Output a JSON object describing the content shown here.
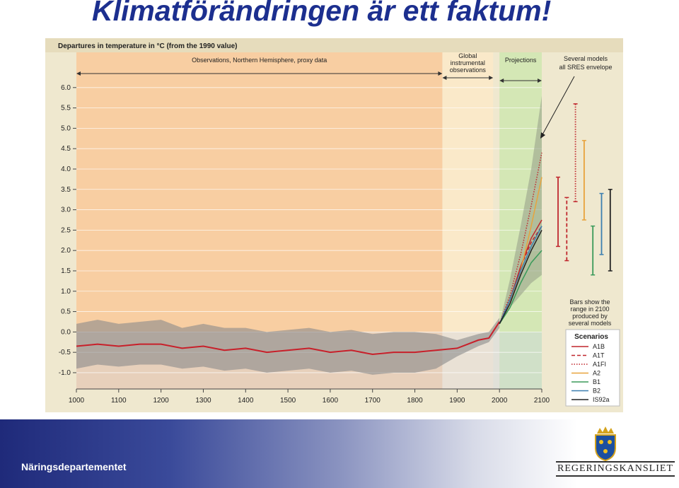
{
  "slide": {
    "title": "Klimatförändringen är ett faktum!",
    "footer": "Näringsdepartementet",
    "logo": "REGERINGSKANSLIET"
  },
  "chart_data": {
    "type": "line",
    "title": "Departures in temperature in °C (from the 1990 value)",
    "xlim": [
      1000,
      2100
    ],
    "ylim": [
      -1.4,
      6.5
    ],
    "xticks": [
      1000,
      1100,
      1200,
      1300,
      1400,
      1500,
      1600,
      1700,
      1800,
      1900,
      2000,
      2100
    ],
    "yticks": [
      {
        "value": 6.0,
        "label": "6.0"
      },
      {
        "value": 5.5,
        "label": "5.5"
      },
      {
        "value": 5.0,
        "label": "5.0"
      },
      {
        "value": 4.5,
        "label": "4.5"
      },
      {
        "value": 4.0,
        "label": "4.0"
      },
      {
        "value": 3.5,
        "label": "3.5"
      },
      {
        "value": 3.0,
        "label": "3.0"
      },
      {
        "value": 2.5,
        "label": "2.5"
      },
      {
        "value": 2.0,
        "label": "2.0"
      },
      {
        "value": 1.5,
        "label": "1.5"
      },
      {
        "value": 1.0,
        "label": "1.0"
      },
      {
        "value": 0.5,
        "label": "0.5"
      },
      {
        "value": 0.0,
        "label": "0.0"
      },
      {
        "value": -0.5,
        "label": "-0.5"
      },
      {
        "value": -1.0,
        "label": "-1.0"
      }
    ],
    "grid": true,
    "regions": [
      {
        "label": [
          "Observations, Northern Hemisphere, proxy data"
        ],
        "from": 1000,
        "to": 1865,
        "color": "#f9c99a"
      },
      {
        "label": [
          "Global",
          "instrumental",
          "observations"
        ],
        "from": 1865,
        "to": 1985,
        "color": "#fbe9c8"
      },
      {
        "label": [
          "Projections"
        ],
        "from": 2000,
        "to": 2100,
        "color": "#cfe6b0"
      }
    ],
    "envelope_note": [
      "Several models",
      "all SRES envelope"
    ],
    "bars_note": [
      "Bars show the",
      "range in 2100",
      "produced by",
      "several models"
    ],
    "legend_title": "Scenarios",
    "observed": {
      "color": "#c8202a",
      "band_color": "#8a8a8a",
      "x": [
        1000,
        1050,
        1100,
        1150,
        1200,
        1250,
        1300,
        1350,
        1400,
        1450,
        1500,
        1550,
        1600,
        1650,
        1700,
        1750,
        1800,
        1850,
        1900,
        1950,
        1975,
        2000
      ],
      "values": [
        -0.35,
        -0.3,
        -0.35,
        -0.3,
        -0.3,
        -0.4,
        -0.35,
        -0.45,
        -0.4,
        -0.5,
        -0.45,
        -0.4,
        -0.5,
        -0.45,
        -0.55,
        -0.5,
        -0.5,
        -0.45,
        -0.4,
        -0.2,
        -0.15,
        0.25
      ],
      "low": [
        -0.9,
        -0.8,
        -0.85,
        -0.8,
        -0.8,
        -0.9,
        -0.85,
        -0.95,
        -0.9,
        -1.0,
        -0.95,
        -0.9,
        -1.0,
        -0.95,
        -1.05,
        -1.0,
        -1.0,
        -0.9,
        -0.6,
        -0.35,
        -0.25,
        0.1
      ],
      "high": [
        0.2,
        0.3,
        0.2,
        0.25,
        0.3,
        0.1,
        0.2,
        0.1,
        0.1,
        0.0,
        0.05,
        0.1,
        0.0,
        0.05,
        -0.05,
        0.0,
        0.0,
        -0.05,
        -0.2,
        -0.05,
        0.0,
        0.35
      ]
    },
    "envelope": {
      "color": "#9aa38c",
      "x": [
        2000,
        2025,
        2050,
        2075,
        2100
      ],
      "low": [
        0.2,
        0.6,
        0.9,
        1.2,
        1.4
      ],
      "high": [
        0.2,
        1.3,
        2.6,
        4.0,
        5.8
      ]
    },
    "projection_x": [
      2000,
      2025,
      2050,
      2075,
      2100
    ],
    "series": [
      {
        "name": "A1B",
        "color": "#c0272d",
        "style": "solid",
        "values": [
          0.2,
          0.8,
          1.6,
          2.3,
          2.75
        ],
        "range": [
          2.1,
          3.8
        ]
      },
      {
        "name": "A1T",
        "color": "#c0272d",
        "style": "dashed",
        "values": [
          0.2,
          0.8,
          1.6,
          2.2,
          2.6
        ],
        "range": [
          1.75,
          3.3
        ]
      },
      {
        "name": "A1FI",
        "color": "#c0272d",
        "style": "dotted",
        "values": [
          0.2,
          0.9,
          1.9,
          3.1,
          4.4
        ],
        "range": [
          3.2,
          5.6
        ]
      },
      {
        "name": "A2",
        "color": "#e8a33c",
        "style": "solid",
        "values": [
          0.2,
          0.7,
          1.5,
          2.6,
          3.8
        ],
        "range": [
          2.75,
          4.7
        ]
      },
      {
        "name": "B1",
        "color": "#3a9a5a",
        "style": "solid",
        "values": [
          0.2,
          0.6,
          1.2,
          1.7,
          2.0
        ],
        "range": [
          1.4,
          2.6
        ]
      },
      {
        "name": "B2",
        "color": "#3c7fb0",
        "style": "solid",
        "values": [
          0.2,
          0.8,
          1.5,
          2.1,
          2.6
        ],
        "range": [
          1.9,
          3.4
        ]
      },
      {
        "name": "IS92a",
        "color": "#222222",
        "style": "solid",
        "values": [
          0.2,
          0.7,
          1.4,
          2.0,
          2.5
        ],
        "range": [
          1.5,
          3.5
        ]
      }
    ]
  }
}
